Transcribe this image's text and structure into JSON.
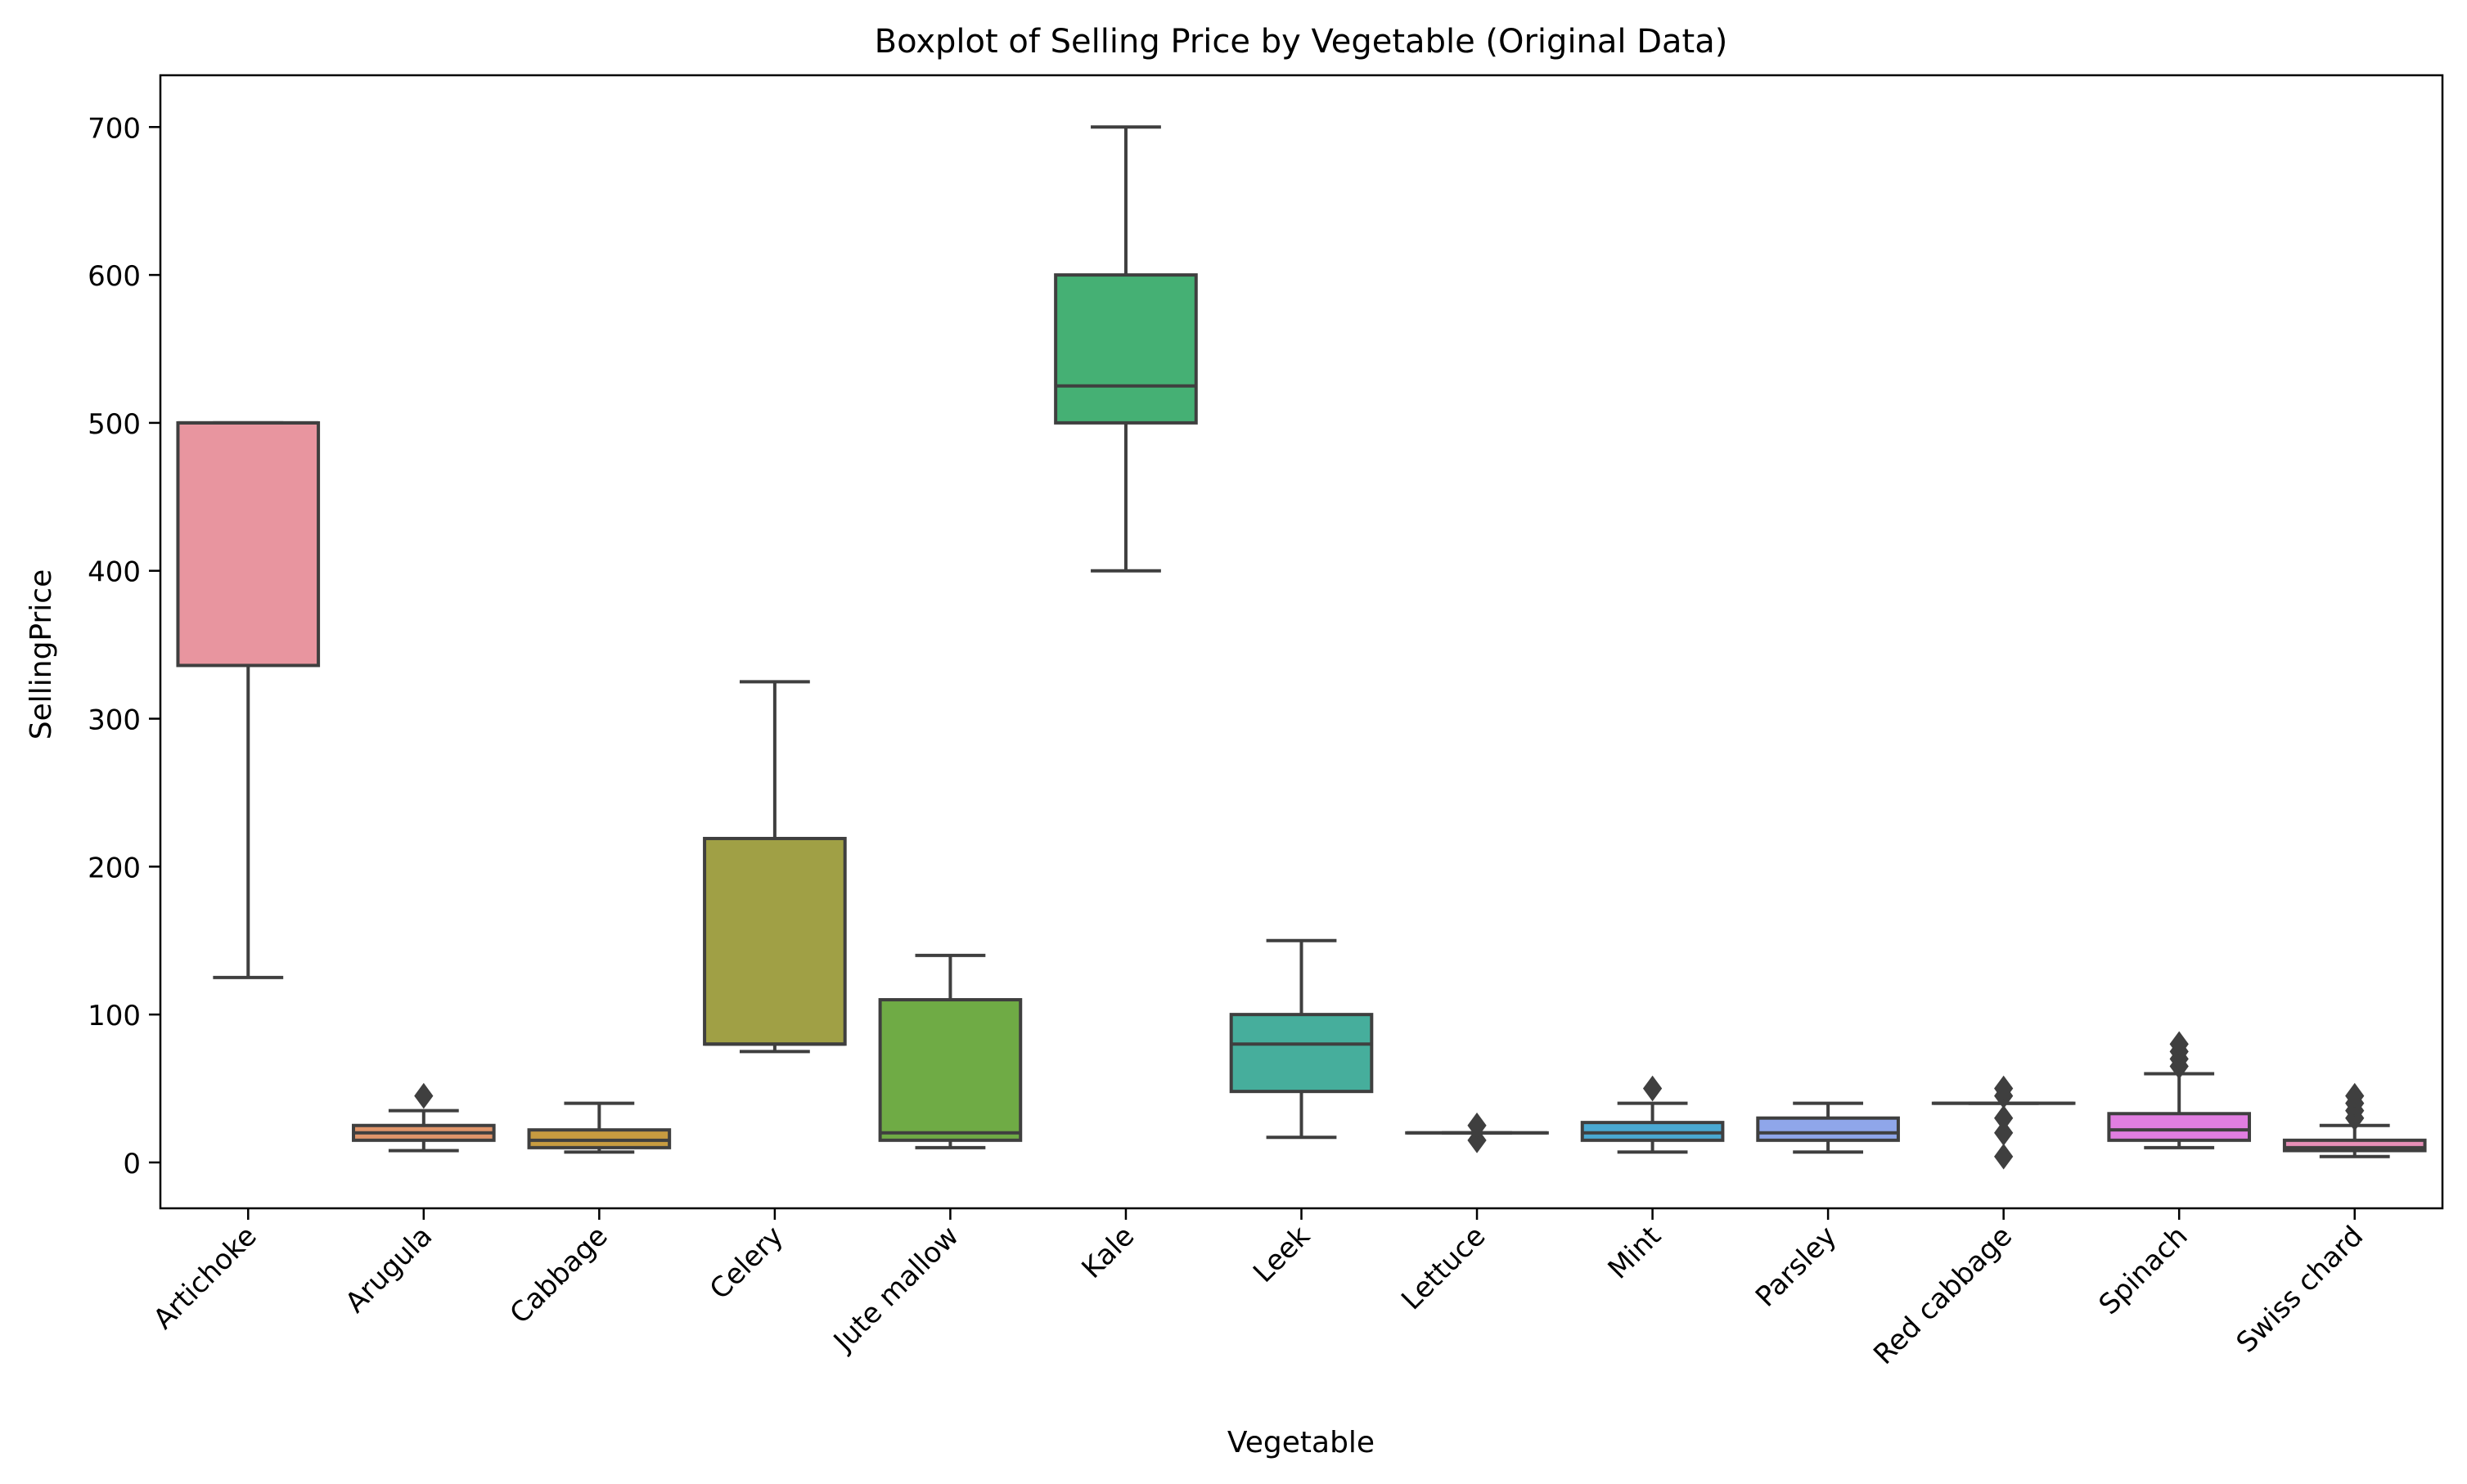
{
  "chart_data": {
    "type": "boxplot",
    "title": "Boxplot of Selling Price by Vegetable (Original Data)",
    "xlabel": "Vegetable",
    "ylabel": "SellingPrice",
    "ylim": [
      -31,
      735
    ],
    "yticks": [
      0,
      100,
      200,
      300,
      400,
      500,
      600,
      700
    ],
    "grid": false,
    "legend": "none",
    "series": [
      {
        "category": "Artichoke",
        "whisker_low": 125,
        "q1": 336,
        "median": 500,
        "q3": 500,
        "whisker_high": 500,
        "outliers": [],
        "color": "#e8959f"
      },
      {
        "category": "Arugula",
        "whisker_low": 8,
        "q1": 15,
        "median": 20,
        "q3": 25,
        "whisker_high": 35,
        "outliers": [
          45
        ],
        "color": "#e0956a"
      },
      {
        "category": "Cabbage",
        "whisker_low": 7,
        "q1": 10,
        "median": 15,
        "q3": 22,
        "whisker_high": 40,
        "outliers": [],
        "color": "#c79b40"
      },
      {
        "category": "Celery",
        "whisker_low": 75,
        "q1": 80,
        "median": 80,
        "q3": 219,
        "whisker_high": 325,
        "outliers": [],
        "color": "#a0a045"
      },
      {
        "category": "Jute mallow",
        "whisker_low": 10,
        "q1": 15,
        "median": 20,
        "q3": 110,
        "whisker_high": 140,
        "outliers": [],
        "color": "#6fab45"
      },
      {
        "category": "Kale",
        "whisker_low": 400,
        "q1": 500,
        "median": 525,
        "q3": 600,
        "whisker_high": 700,
        "outliers": [],
        "color": "#45b074"
      },
      {
        "category": "Leek",
        "whisker_low": 17,
        "q1": 48,
        "median": 80,
        "q3": 100,
        "whisker_high": 150,
        "outliers": [],
        "color": "#46ae9c"
      },
      {
        "category": "Lettuce",
        "whisker_low": 20,
        "q1": 20,
        "median": 20,
        "q3": 20,
        "whisker_high": 20,
        "outliers": [
          15,
          25
        ],
        "color": "#48adb0"
      },
      {
        "category": "Mint",
        "whisker_low": 7,
        "q1": 15,
        "median": 20,
        "q3": 27,
        "whisker_high": 40,
        "outliers": [
          50
        ],
        "color": "#4aa9d2"
      },
      {
        "category": "Parsley",
        "whisker_low": 7,
        "q1": 15,
        "median": 20,
        "q3": 30,
        "whisker_high": 40,
        "outliers": [],
        "color": "#8fa6ea"
      },
      {
        "category": "Red cabbage",
        "whisker_low": 40,
        "q1": 40,
        "median": 40,
        "q3": 40,
        "whisker_high": 40,
        "outliers": [
          4,
          20,
          30,
          45,
          50
        ],
        "color": "#c295e8"
      },
      {
        "category": "Spinach",
        "whisker_low": 10,
        "q1": 15,
        "median": 22,
        "q3": 33,
        "whisker_high": 60,
        "outliers": [
          65,
          70,
          75,
          80
        ],
        "color": "#e07ee0"
      },
      {
        "category": "Swiss chard",
        "whisker_low": 4,
        "q1": 8,
        "median": 10,
        "q3": 15,
        "whisker_high": 25,
        "outliers": [
          30,
          35,
          40,
          45
        ],
        "color": "#e78fb7"
      }
    ]
  }
}
